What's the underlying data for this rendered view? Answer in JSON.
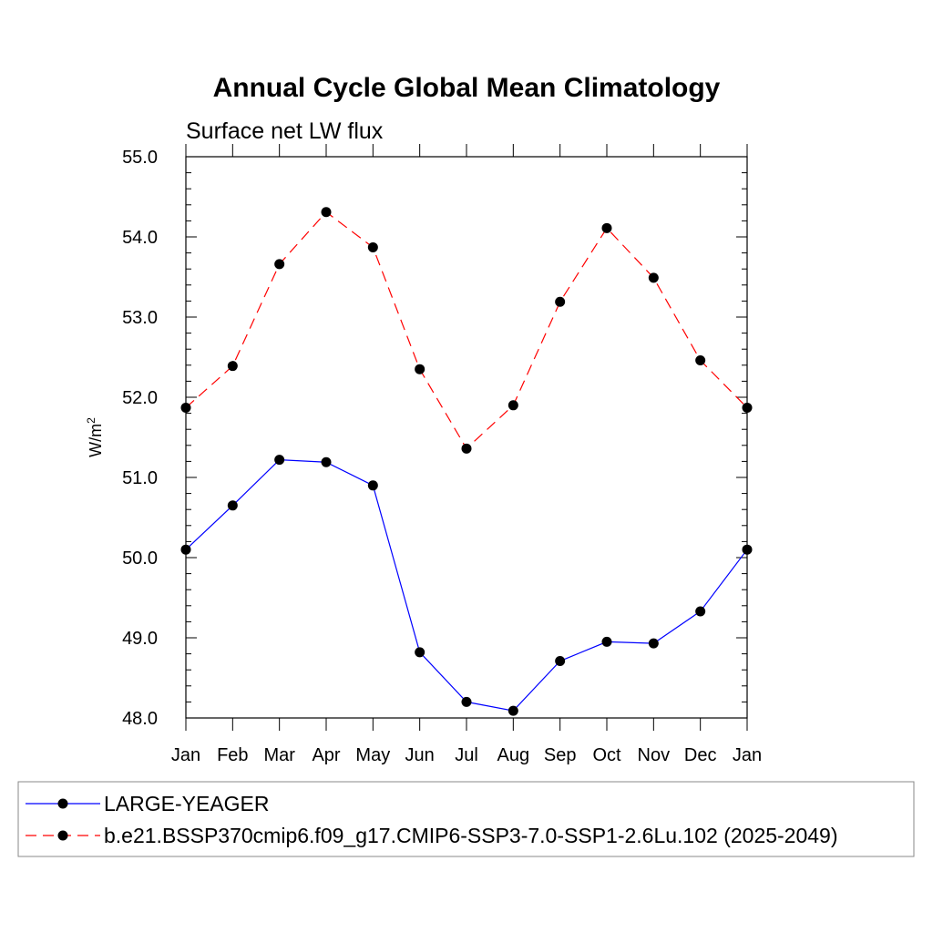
{
  "chart_data": {
    "type": "line",
    "title": "Annual Cycle Global Mean Climatology",
    "subtitle": "Surface net LW flux",
    "ylabel": "W/m",
    "ylabel_sup": "2",
    "categories": [
      "Jan",
      "Feb",
      "Mar",
      "Apr",
      "May",
      "Jun",
      "Jul",
      "Aug",
      "Sep",
      "Oct",
      "Nov",
      "Dec",
      "Jan"
    ],
    "ylim": [
      48.0,
      55.0
    ],
    "yticks": [
      "48.0",
      "49.0",
      "50.0",
      "51.0",
      "52.0",
      "53.0",
      "54.0",
      "55.0"
    ],
    "grid": false,
    "legend_position": "bottom",
    "series": [
      {
        "name": "LARGE-YEAGER",
        "color": "#0000ff",
        "line_style": "solid",
        "marker": "filled-circle",
        "values": [
          50.1,
          50.65,
          51.22,
          51.19,
          50.9,
          48.82,
          48.2,
          48.09,
          48.71,
          48.95,
          48.93,
          49.33,
          50.1
        ]
      },
      {
        "name": "b.e21.BSSP370cmip6.f09_g17.CMIP6-SSP3-7.0-SSP1-2.6Lu.102 (2025-2049)",
        "color": "#ff0000",
        "line_style": "dashed",
        "marker": "filled-circle",
        "values": [
          51.87,
          52.39,
          53.66,
          54.31,
          53.87,
          52.35,
          51.36,
          51.9,
          53.19,
          54.11,
          53.49,
          52.46,
          51.87
        ]
      }
    ]
  }
}
